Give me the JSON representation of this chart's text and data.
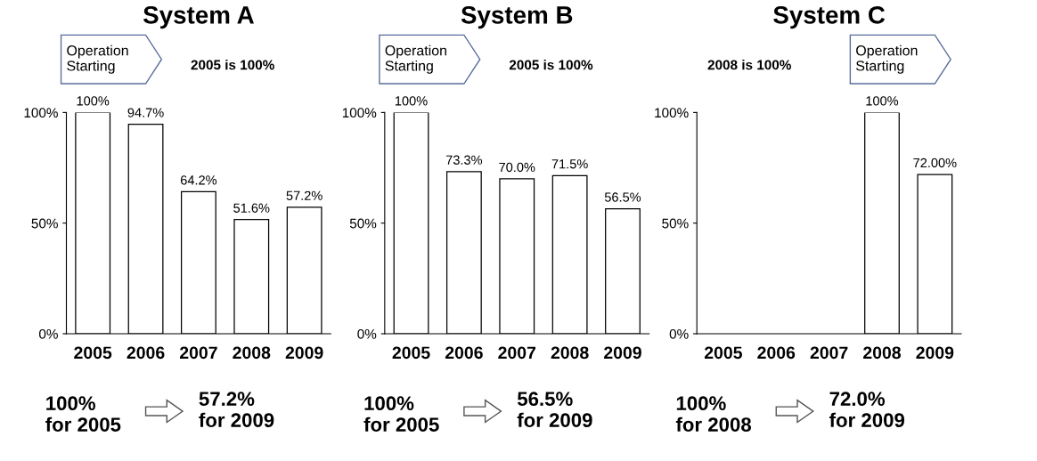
{
  "chart_data": [
    {
      "type": "bar",
      "title": "System A",
      "categories": [
        "2005",
        "2006",
        "2007",
        "2008",
        "2009"
      ],
      "values": [
        100,
        94.7,
        64.2,
        51.6,
        57.2
      ],
      "value_labels": [
        "100%",
        "94.7%",
        "64.2%",
        "51.6%",
        "57.2%"
      ],
      "color": "#ffffff",
      "ylim": [
        0,
        100
      ],
      "yticks": [
        {
          "value": 0,
          "label": "0%"
        },
        {
          "value": 50,
          "label": "50%"
        },
        {
          "value": 100,
          "label": "100%"
        }
      ],
      "annotations": [
        "Operation\nStarting",
        "2005 is 100%",
        "100%\nfor 2005",
        "57.2%\nfor 2009"
      ]
    },
    {
      "type": "bar",
      "title": "System B",
      "categories": [
        "2005",
        "2006",
        "2007",
        "2008",
        "2009"
      ],
      "values": [
        100,
        73.3,
        70.0,
        71.5,
        56.5
      ],
      "value_labels": [
        "100%",
        "73.3%",
        "70.0%",
        "71.5%",
        "56.5%"
      ],
      "color": "#ffffff",
      "ylim": [
        0,
        100
      ],
      "yticks": [
        {
          "value": 0,
          "label": "0%"
        },
        {
          "value": 50,
          "label": "50%"
        },
        {
          "value": 100,
          "label": "100%"
        }
      ],
      "annotations": [
        "Operation\nStarting",
        "2005 is 100%",
        "100%\nfor 2005",
        "56.5%\nfor 2009"
      ]
    },
    {
      "type": "bar",
      "title": "System C",
      "categories": [
        "2005",
        "2006",
        "2007",
        "2008",
        "2009"
      ],
      "values": [
        null,
        null,
        null,
        100,
        72.0
      ],
      "value_labels": [
        null,
        null,
        null,
        "100%",
        "72.00%"
      ],
      "color": "#ffffff",
      "ylim": [
        0,
        100
      ],
      "yticks": [
        {
          "value": 0,
          "label": "0%"
        },
        {
          "value": 50,
          "label": "50%"
        },
        {
          "value": 100,
          "label": "100%"
        }
      ],
      "annotations": [
        "2008 is 100%",
        "Operation\nStarting",
        "100%\nfor 2008",
        "72.0%\nfor 2009"
      ]
    }
  ]
}
